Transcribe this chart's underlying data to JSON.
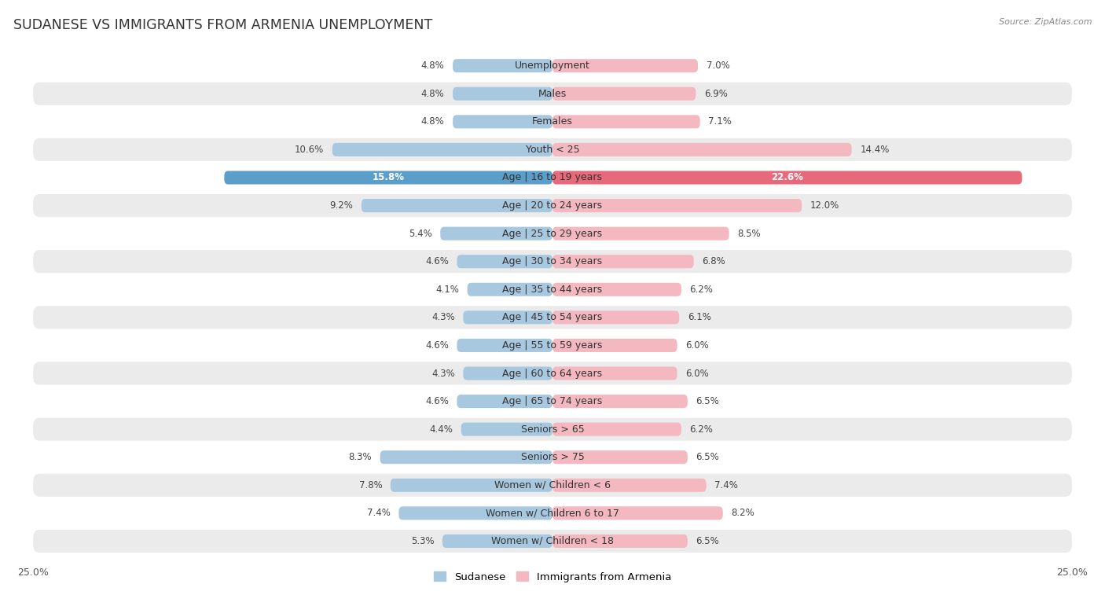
{
  "title": "SUDANESE VS IMMIGRANTS FROM ARMENIA UNEMPLOYMENT",
  "source": "Source: ZipAtlas.com",
  "categories": [
    "Unemployment",
    "Males",
    "Females",
    "Youth < 25",
    "Age | 16 to 19 years",
    "Age | 20 to 24 years",
    "Age | 25 to 29 years",
    "Age | 30 to 34 years",
    "Age | 35 to 44 years",
    "Age | 45 to 54 years",
    "Age | 55 to 59 years",
    "Age | 60 to 64 years",
    "Age | 65 to 74 years",
    "Seniors > 65",
    "Seniors > 75",
    "Women w/ Children < 6",
    "Women w/ Children 6 to 17",
    "Women w/ Children < 18"
  ],
  "sudanese": [
    4.8,
    4.8,
    4.8,
    10.6,
    15.8,
    9.2,
    5.4,
    4.6,
    4.1,
    4.3,
    4.6,
    4.3,
    4.6,
    4.4,
    8.3,
    7.8,
    7.4,
    5.3
  ],
  "armenia": [
    7.0,
    6.9,
    7.1,
    14.4,
    22.6,
    12.0,
    8.5,
    6.8,
    6.2,
    6.1,
    6.0,
    6.0,
    6.5,
    6.2,
    6.5,
    7.4,
    8.2,
    6.5
  ],
  "sudanese_color": "#a8c8e0",
  "armenia_color": "#f4b8c0",
  "sudanese_highlight": "#5b9ec9",
  "armenia_highlight": "#e8697a",
  "axis_max": 25.0,
  "background_color": "#ffffff",
  "row_bg_even": "#ffffff",
  "row_bg_odd": "#ebebeb",
  "label_fontsize": 9.0,
  "title_fontsize": 12.5,
  "value_fontsize": 8.5,
  "highlight_idx": 4
}
